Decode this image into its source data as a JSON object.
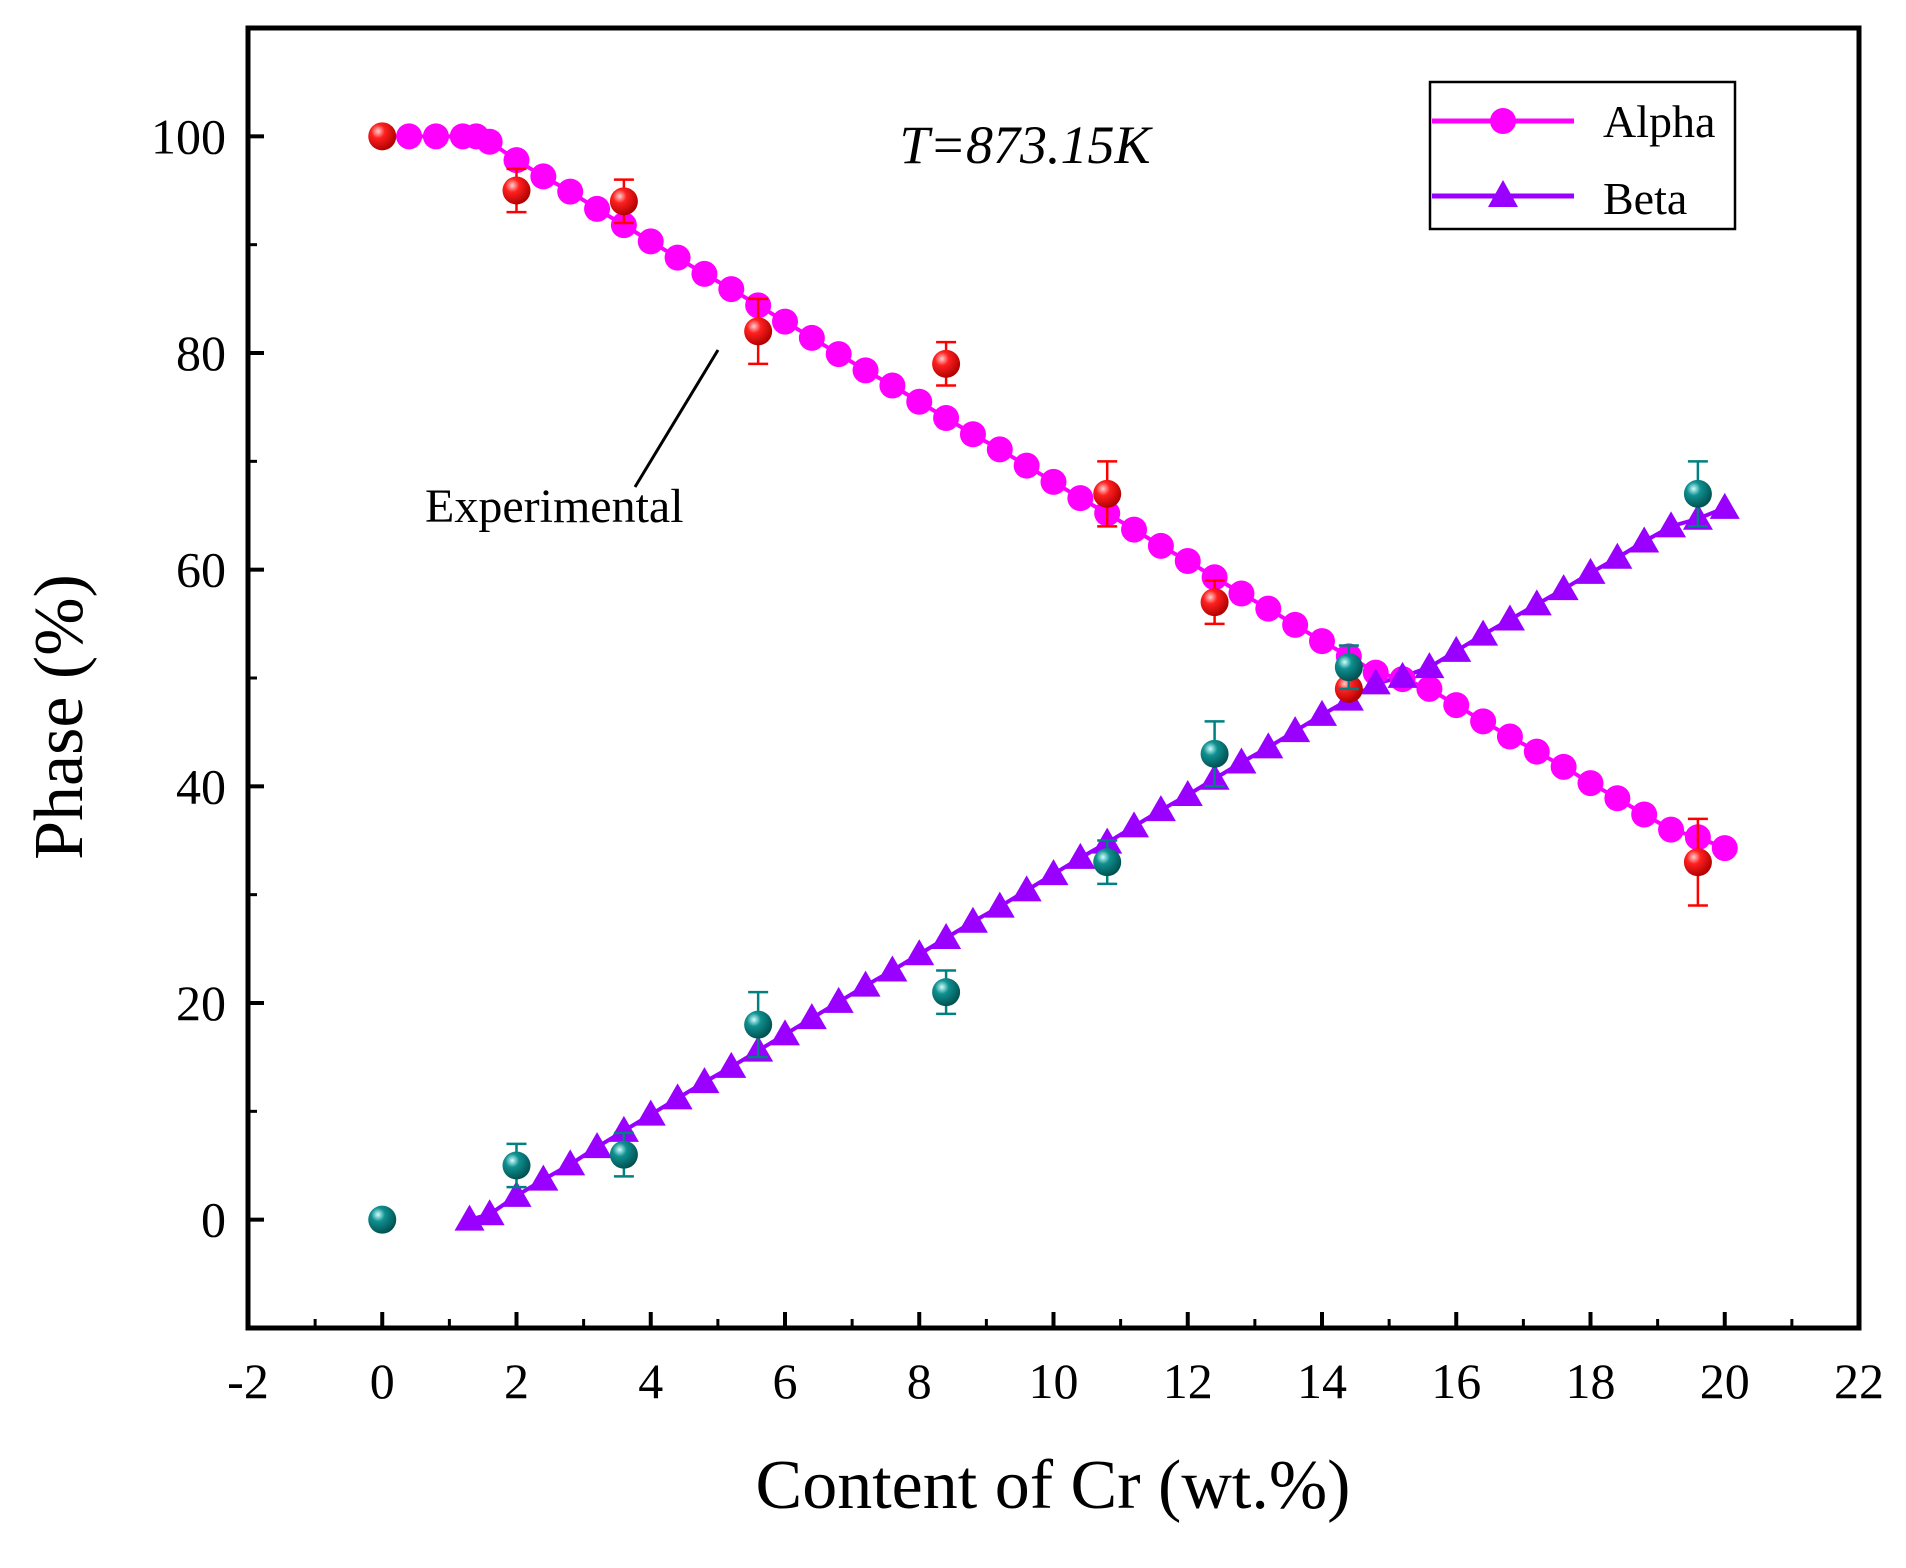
{
  "chart_data": {
    "type": "scatter",
    "title": "",
    "annotation": "T=873.15K",
    "callout_label": "Experimental",
    "xlabel": "Content of Cr (wt.%)",
    "ylabel": "Phase (%)",
    "xlim": [
      -2,
      22
    ],
    "ylim": [
      -10,
      110
    ],
    "xticks": [
      -2,
      0,
      2,
      4,
      6,
      8,
      10,
      12,
      14,
      16,
      18,
      20,
      22
    ],
    "yticks": [
      0,
      20,
      40,
      60,
      80,
      100
    ],
    "legend": {
      "placement": "top-right",
      "entries": [
        "Alpha",
        "Beta"
      ]
    },
    "colors": {
      "alpha": "#ff00ff",
      "beta": "#9900ff",
      "exp_alpha": "#ff0000",
      "exp_beta": "#008080"
    },
    "series": [
      {
        "name": "Alpha",
        "marker": "circle",
        "x": [
          0,
          0.4,
          0.8,
          1.2,
          1.4,
          1.6,
          2.0,
          2.4,
          2.8,
          3.2,
          3.6,
          4.0,
          4.4,
          4.8,
          5.2,
          5.6,
          6.0,
          6.4,
          6.8,
          7.2,
          7.6,
          8.0,
          8.4,
          8.8,
          9.2,
          9.6,
          10.0,
          10.4,
          10.8,
          11.2,
          11.6,
          12.0,
          12.4,
          12.8,
          13.2,
          13.6,
          14.0,
          14.4,
          14.8,
          15.2,
          15.6,
          16.0,
          16.4,
          16.8,
          17.2,
          17.6,
          18.0,
          18.4,
          18.8,
          19.2,
          19.6,
          20.0
        ],
        "y": [
          100,
          100,
          100,
          100,
          100,
          99.5,
          97.8,
          96.3,
          94.9,
          93.3,
          91.8,
          90.3,
          88.8,
          87.3,
          85.9,
          84.4,
          82.9,
          81.4,
          79.9,
          78.4,
          77.0,
          75.5,
          74.0,
          72.5,
          71.1,
          69.6,
          68.1,
          66.6,
          65.2,
          63.7,
          62.2,
          60.8,
          59.3,
          57.8,
          56.4,
          54.9,
          53.4,
          52.0,
          50.5,
          49.9,
          49.0,
          47.5,
          46.0,
          44.6,
          43.2,
          41.8,
          40.3,
          38.9,
          37.4,
          36.0,
          35.3,
          34.3
        ]
      },
      {
        "name": "Beta",
        "marker": "triangle",
        "x": [
          1.3,
          1.6,
          2.0,
          2.4,
          2.8,
          3.2,
          3.6,
          4.0,
          4.4,
          4.8,
          5.2,
          5.6,
          6.0,
          6.4,
          6.8,
          7.2,
          7.6,
          8.0,
          8.4,
          8.8,
          9.2,
          9.6,
          10.0,
          10.4,
          10.8,
          11.2,
          11.6,
          12.0,
          12.4,
          12.8,
          13.2,
          13.6,
          14.0,
          14.4,
          14.8,
          15.2,
          15.6,
          16.0,
          16.4,
          16.8,
          17.2,
          17.6,
          18.0,
          18.4,
          18.8,
          19.2,
          19.6,
          20.0
        ],
        "y": [
          0,
          0.5,
          2.2,
          3.7,
          5.1,
          6.7,
          8.2,
          9.7,
          11.2,
          12.7,
          14.1,
          15.6,
          17.1,
          18.6,
          20.1,
          21.6,
          23.0,
          24.5,
          26.0,
          27.5,
          28.9,
          30.4,
          31.9,
          33.4,
          34.8,
          36.3,
          37.8,
          39.2,
          40.7,
          42.2,
          43.6,
          45.1,
          46.6,
          48.0,
          49.5,
          50.1,
          51.0,
          52.5,
          54.0,
          55.4,
          56.8,
          58.2,
          59.7,
          61.1,
          62.6,
          64.0,
          64.7,
          65.7
        ]
      },
      {
        "name": "Experimental Alpha",
        "marker": "sphere",
        "x": [
          0,
          2,
          3.6,
          5.6,
          8.4,
          10.8,
          12.4,
          14.4,
          19.6
        ],
        "y": [
          100,
          95,
          94,
          82,
          79,
          67,
          57,
          49,
          33
        ],
        "err": [
          0,
          2,
          2,
          3,
          2,
          3,
          2,
          0,
          4
        ]
      },
      {
        "name": "Experimental Beta",
        "marker": "sphere",
        "x": [
          0,
          2,
          3.6,
          5.6,
          8.4,
          10.8,
          12.4,
          14.4,
          19.6
        ],
        "y": [
          0,
          5,
          6,
          18,
          21,
          33,
          43,
          51,
          67
        ],
        "err": [
          0,
          2,
          2,
          3,
          2,
          2,
          3,
          2,
          3
        ]
      }
    ]
  }
}
